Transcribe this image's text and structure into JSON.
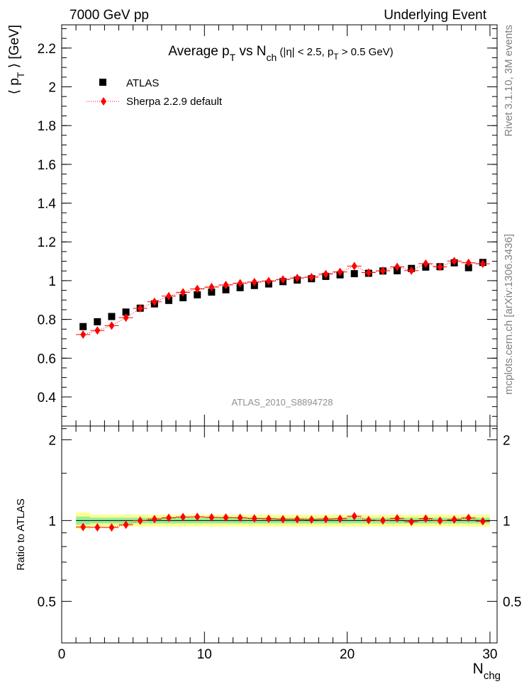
{
  "header": {
    "left": "7000 GeV pp",
    "right": "Underlying Event"
  },
  "side_labels": {
    "rivet": "Rivet 3.1.10,  3M events",
    "mcplots": "mcplots.cern.ch [arXiv:1306.3436]"
  },
  "watermark": "ATLAS_2010_S8894728",
  "colors": {
    "data": "#000000",
    "mc": "#ff0000",
    "band_inner": "#99ee99",
    "band_outer": "#ffff88"
  },
  "chart_data": [
    {
      "type": "scatter",
      "title": "Average p_T vs N_ch (|η| < 2.5, p_T > 0.5 GeV)",
      "title_parts": {
        "main": "Average p",
        "main_sub": "T",
        "mid": " vs N",
        "mid_sub": "ch",
        "tail": " (|η| < 2.5, p",
        "tail_sub": "T",
        "end": " > 0.5 GeV)"
      },
      "ylabel": "⟨ p_T ⟩ [GeV]",
      "ylabel_parts": {
        "open": "⟨ p",
        "sub": "T",
        "close": " ⟩ [GeV]"
      },
      "xlim": [
        0,
        30.5
      ],
      "ylim": [
        0.25,
        2.32
      ],
      "yticks": [
        "0.4",
        "0.6",
        "0.8",
        "1",
        "1.2",
        "1.4",
        "1.6",
        "1.8",
        "2",
        "2.2"
      ],
      "legend_position": "top-left",
      "x": [
        1.5,
        2.5,
        3.5,
        4.5,
        5.5,
        6.5,
        7.5,
        8.5,
        9.5,
        10.5,
        11.5,
        12.5,
        13.5,
        14.5,
        15.5,
        16.5,
        17.5,
        18.5,
        19.5,
        20.5,
        21.5,
        22.5,
        23.5,
        24.5,
        25.5,
        26.5,
        27.5,
        28.5,
        29.5
      ],
      "series": [
        {
          "name": "ATLAS",
          "marker": "square",
          "values": [
            0.763,
            0.788,
            0.815,
            0.838,
            0.858,
            0.88,
            0.898,
            0.912,
            0.927,
            0.941,
            0.953,
            0.964,
            0.975,
            0.983,
            0.995,
            1.003,
            1.01,
            1.022,
            1.03,
            1.036,
            1.038,
            1.05,
            1.051,
            1.063,
            1.07,
            1.072,
            1.092,
            1.067,
            1.094
          ]
        },
        {
          "name": "Sherpa 2.2.9 default",
          "marker": "diamond",
          "line": "dotted",
          "values": [
            0.722,
            0.743,
            0.768,
            0.809,
            0.857,
            0.891,
            0.92,
            0.94,
            0.957,
            0.967,
            0.978,
            0.987,
            0.993,
            0.998,
            1.006,
            1.014,
            1.018,
            1.034,
            1.045,
            1.075,
            1.042,
            1.051,
            1.071,
            1.052,
            1.088,
            1.071,
            1.101,
            1.092,
            1.087
          ]
        }
      ]
    },
    {
      "type": "scatter",
      "ylabel": "Ratio to ATLAS",
      "xlabel": "N_chg",
      "xlabel_parts": {
        "main": "N",
        "sub": "chg"
      },
      "xlim": [
        0,
        30.5
      ],
      "ylim": [
        0.35,
        2.25
      ],
      "yticks": [
        "0.5",
        "1",
        "2"
      ],
      "xticks": [
        "0",
        "10",
        "20",
        "30"
      ],
      "ratio_line": 1,
      "band_inner": [
        0.035,
        0.025,
        0.025,
        0.025,
        0.025,
        0.025,
        0.025,
        0.025,
        0.025,
        0.025,
        0.025,
        0.025,
        0.025,
        0.025,
        0.025,
        0.025,
        0.025,
        0.025,
        0.025,
        0.025,
        0.025,
        0.025,
        0.025,
        0.025,
        0.025,
        0.025,
        0.025,
        0.025,
        0.025
      ],
      "band_outer": [
        0.07,
        0.05,
        0.05,
        0.05,
        0.05,
        0.05,
        0.05,
        0.05,
        0.05,
        0.05,
        0.05,
        0.05,
        0.05,
        0.05,
        0.05,
        0.05,
        0.05,
        0.05,
        0.05,
        0.05,
        0.05,
        0.05,
        0.05,
        0.05,
        0.05,
        0.05,
        0.05,
        0.05,
        0.05
      ],
      "series": [
        {
          "name": "Sherpa 2.2.9 default",
          "values": [
            0.946,
            0.943,
            0.942,
            0.965,
            0.999,
            1.012,
            1.024,
            1.031,
            1.032,
            1.028,
            1.026,
            1.024,
            1.018,
            1.015,
            1.011,
            1.011,
            1.008,
            1.012,
            1.015,
            1.038,
            1.004,
            1.001,
            1.019,
            0.99,
            1.017,
            0.999,
            1.008,
            1.023,
            0.994
          ]
        }
      ]
    }
  ]
}
